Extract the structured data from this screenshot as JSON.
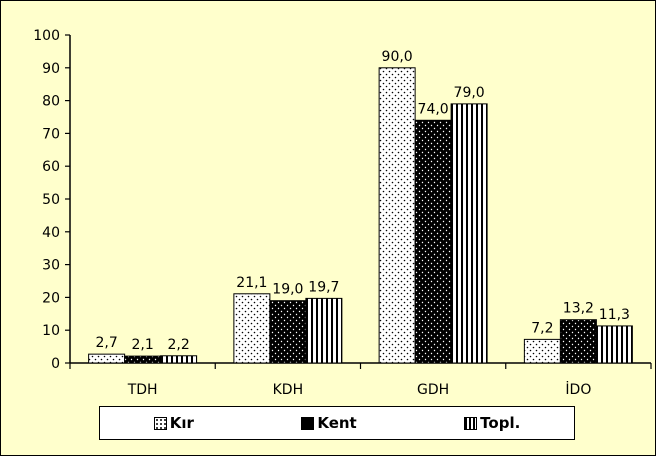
{
  "chart_data": {
    "type": "bar",
    "categories": [
      "TDH",
      "KDH",
      "GDH",
      "İDO"
    ],
    "series": [
      {
        "name": "Kır",
        "values": [
          2.7,
          21.1,
          90.0,
          7.2
        ],
        "labels": [
          "2,7",
          "21,1",
          "90,0",
          "7,2"
        ],
        "pattern": "dots-sparse"
      },
      {
        "name": "Kent",
        "values": [
          2.1,
          19.0,
          74.0,
          13.2
        ],
        "labels": [
          "2,1",
          "19,0",
          "74,0",
          "13,2"
        ],
        "pattern": "solid-black"
      },
      {
        "name": "Topl.",
        "values": [
          2.2,
          19.7,
          79.0,
          11.3
        ],
        "labels": [
          "2,2",
          "19,7",
          "79,0",
          "11,3"
        ],
        "pattern": "vertical-stripes"
      }
    ],
    "ylim": [
      0,
      100
    ],
    "yticks": [
      "0",
      "10",
      "20",
      "30",
      "40",
      "50",
      "60",
      "70",
      "80",
      "90",
      "100"
    ],
    "grid": false,
    "legend_position": "bottom",
    "background_color": "#ffffcc"
  }
}
